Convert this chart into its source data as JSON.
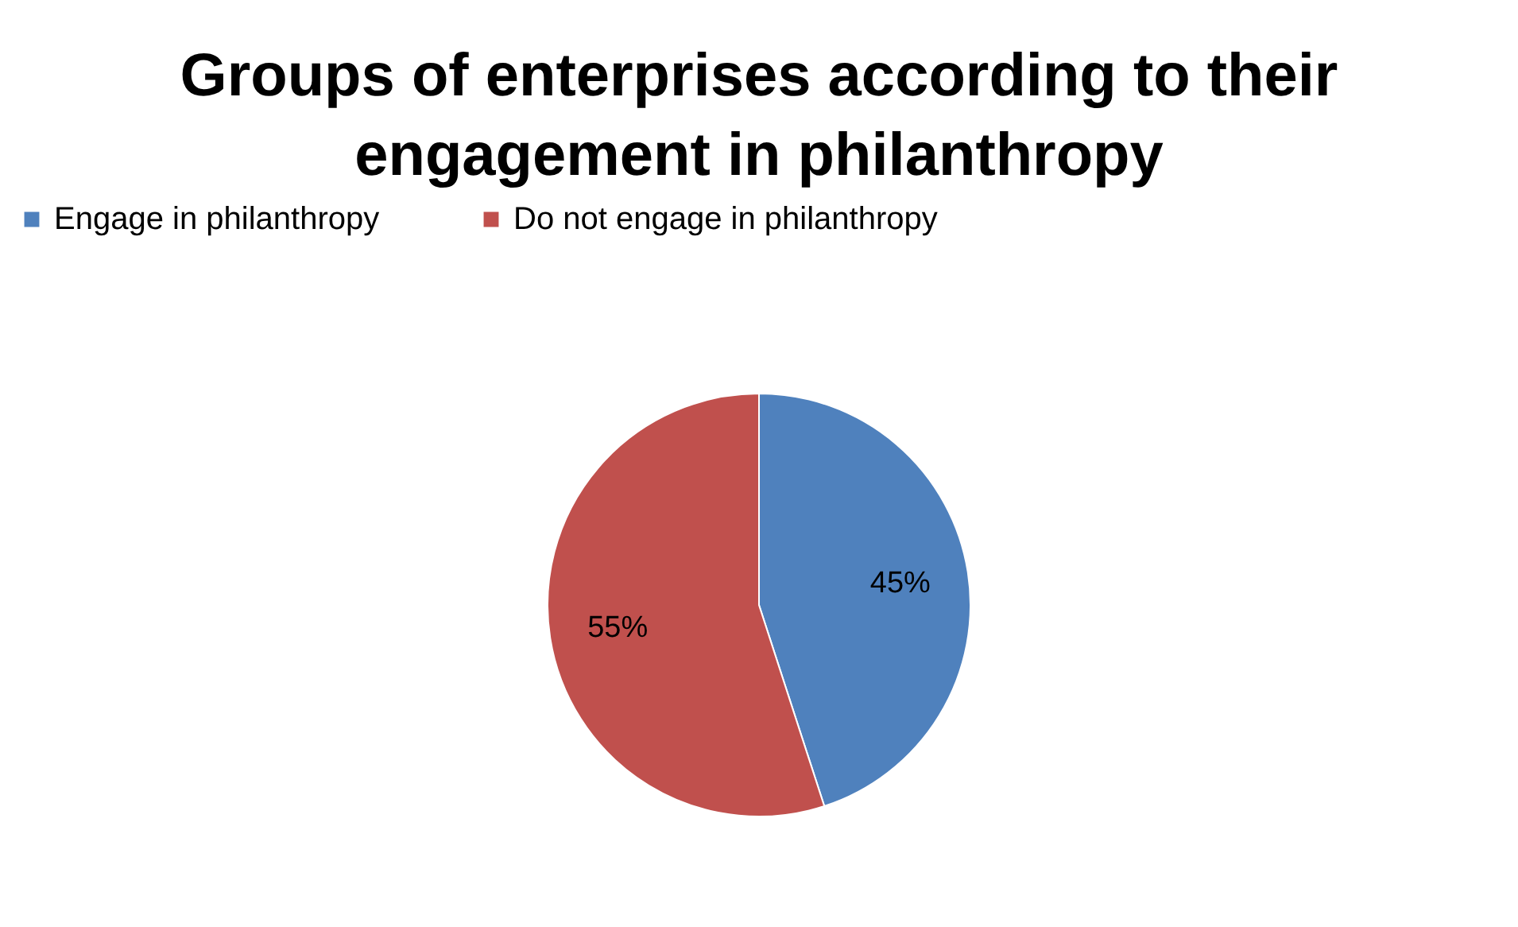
{
  "chart_data": {
    "type": "pie",
    "title": "Groups of enterprises according to their engagement in philanthropy",
    "categories": [
      "Engage in philanthropy",
      "Do not engage in philanthropy"
    ],
    "values": [
      45,
      55
    ],
    "colors": [
      "#4f81bd",
      "#c0504d"
    ],
    "value_labels": [
      "45%",
      "55%"
    ],
    "legend": "top"
  }
}
